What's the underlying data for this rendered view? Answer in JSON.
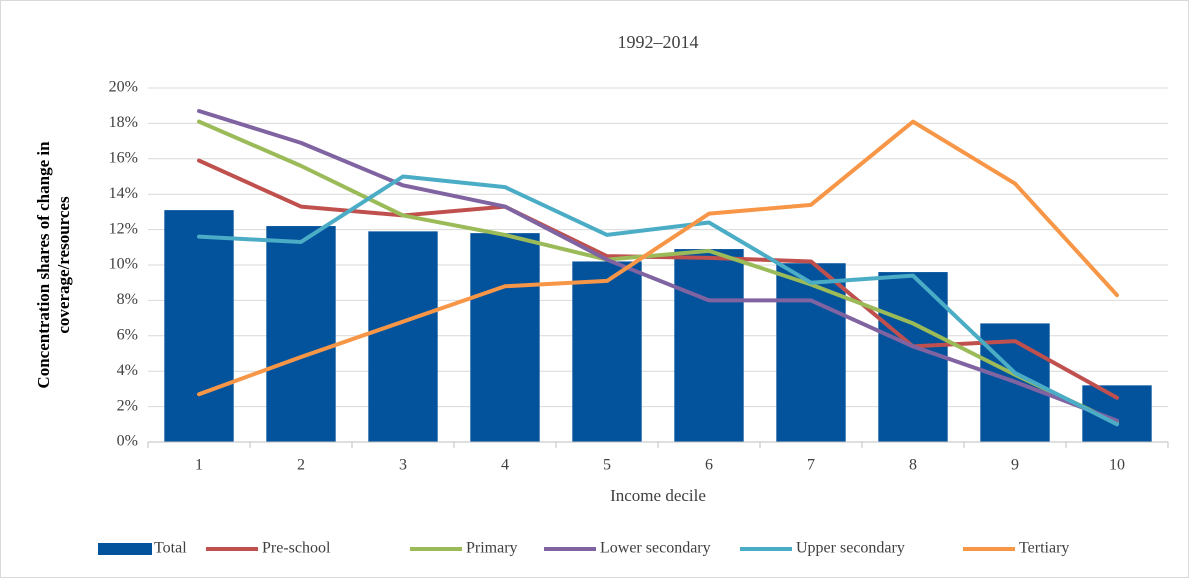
{
  "chart_data": {
    "type": "combo",
    "title": "1992–2014",
    "xlabel": "Income decile",
    "ylabel": [
      "Concentration shares of change in",
      "coverage/resources"
    ],
    "categories": [
      "1",
      "2",
      "3",
      "4",
      "5",
      "6",
      "7",
      "8",
      "9",
      "10"
    ],
    "ylim": [
      0,
      20
    ],
    "yticks": [
      {
        "value": 0,
        "label": "0%"
      },
      {
        "value": 2,
        "label": "2%"
      },
      {
        "value": 4,
        "label": "4%"
      },
      {
        "value": 6,
        "label": "6%"
      },
      {
        "value": 8,
        "label": "8%"
      },
      {
        "value": 10,
        "label": "10%"
      },
      {
        "value": 12,
        "label": "12%"
      },
      {
        "value": 14,
        "label": "14%"
      },
      {
        "value": 16,
        "label": "16%"
      },
      {
        "value": 18,
        "label": "18%"
      },
      {
        "value": 20,
        "label": "20%"
      }
    ],
    "grid": true,
    "legend": "bottom",
    "series": [
      {
        "name": "Total",
        "type": "bar",
        "color": "#03529c",
        "values": [
          13.1,
          12.2,
          11.9,
          11.8,
          10.2,
          10.9,
          10.1,
          9.6,
          6.7,
          3.2
        ]
      },
      {
        "name": "Pre-school",
        "type": "line",
        "color": "#c0504d",
        "values": [
          15.9,
          13.3,
          12.8,
          13.3,
          10.5,
          10.4,
          10.2,
          5.4,
          5.7,
          2.5
        ]
      },
      {
        "name": "Primary",
        "type": "line",
        "color": "#9bbb59",
        "values": [
          18.1,
          15.6,
          12.8,
          11.7,
          10.3,
          10.8,
          8.9,
          6.7,
          3.8,
          1.1
        ]
      },
      {
        "name": "Lower secondary",
        "type": "line",
        "color": "#8064a2",
        "values": [
          18.7,
          16.9,
          14.5,
          13.3,
          10.3,
          8.0,
          8.0,
          5.4,
          3.4,
          1.2
        ]
      },
      {
        "name": "Upper secondary",
        "type": "line",
        "color": "#4bacc6",
        "values": [
          11.6,
          11.3,
          15.0,
          14.4,
          11.7,
          12.4,
          9.0,
          9.4,
          3.9,
          1.0
        ]
      },
      {
        "name": "Tertiary",
        "type": "line",
        "color": "#f79646",
        "values": [
          2.7,
          4.8,
          6.8,
          8.8,
          9.1,
          12.9,
          13.4,
          18.1,
          14.6,
          8.3
        ]
      }
    ]
  }
}
